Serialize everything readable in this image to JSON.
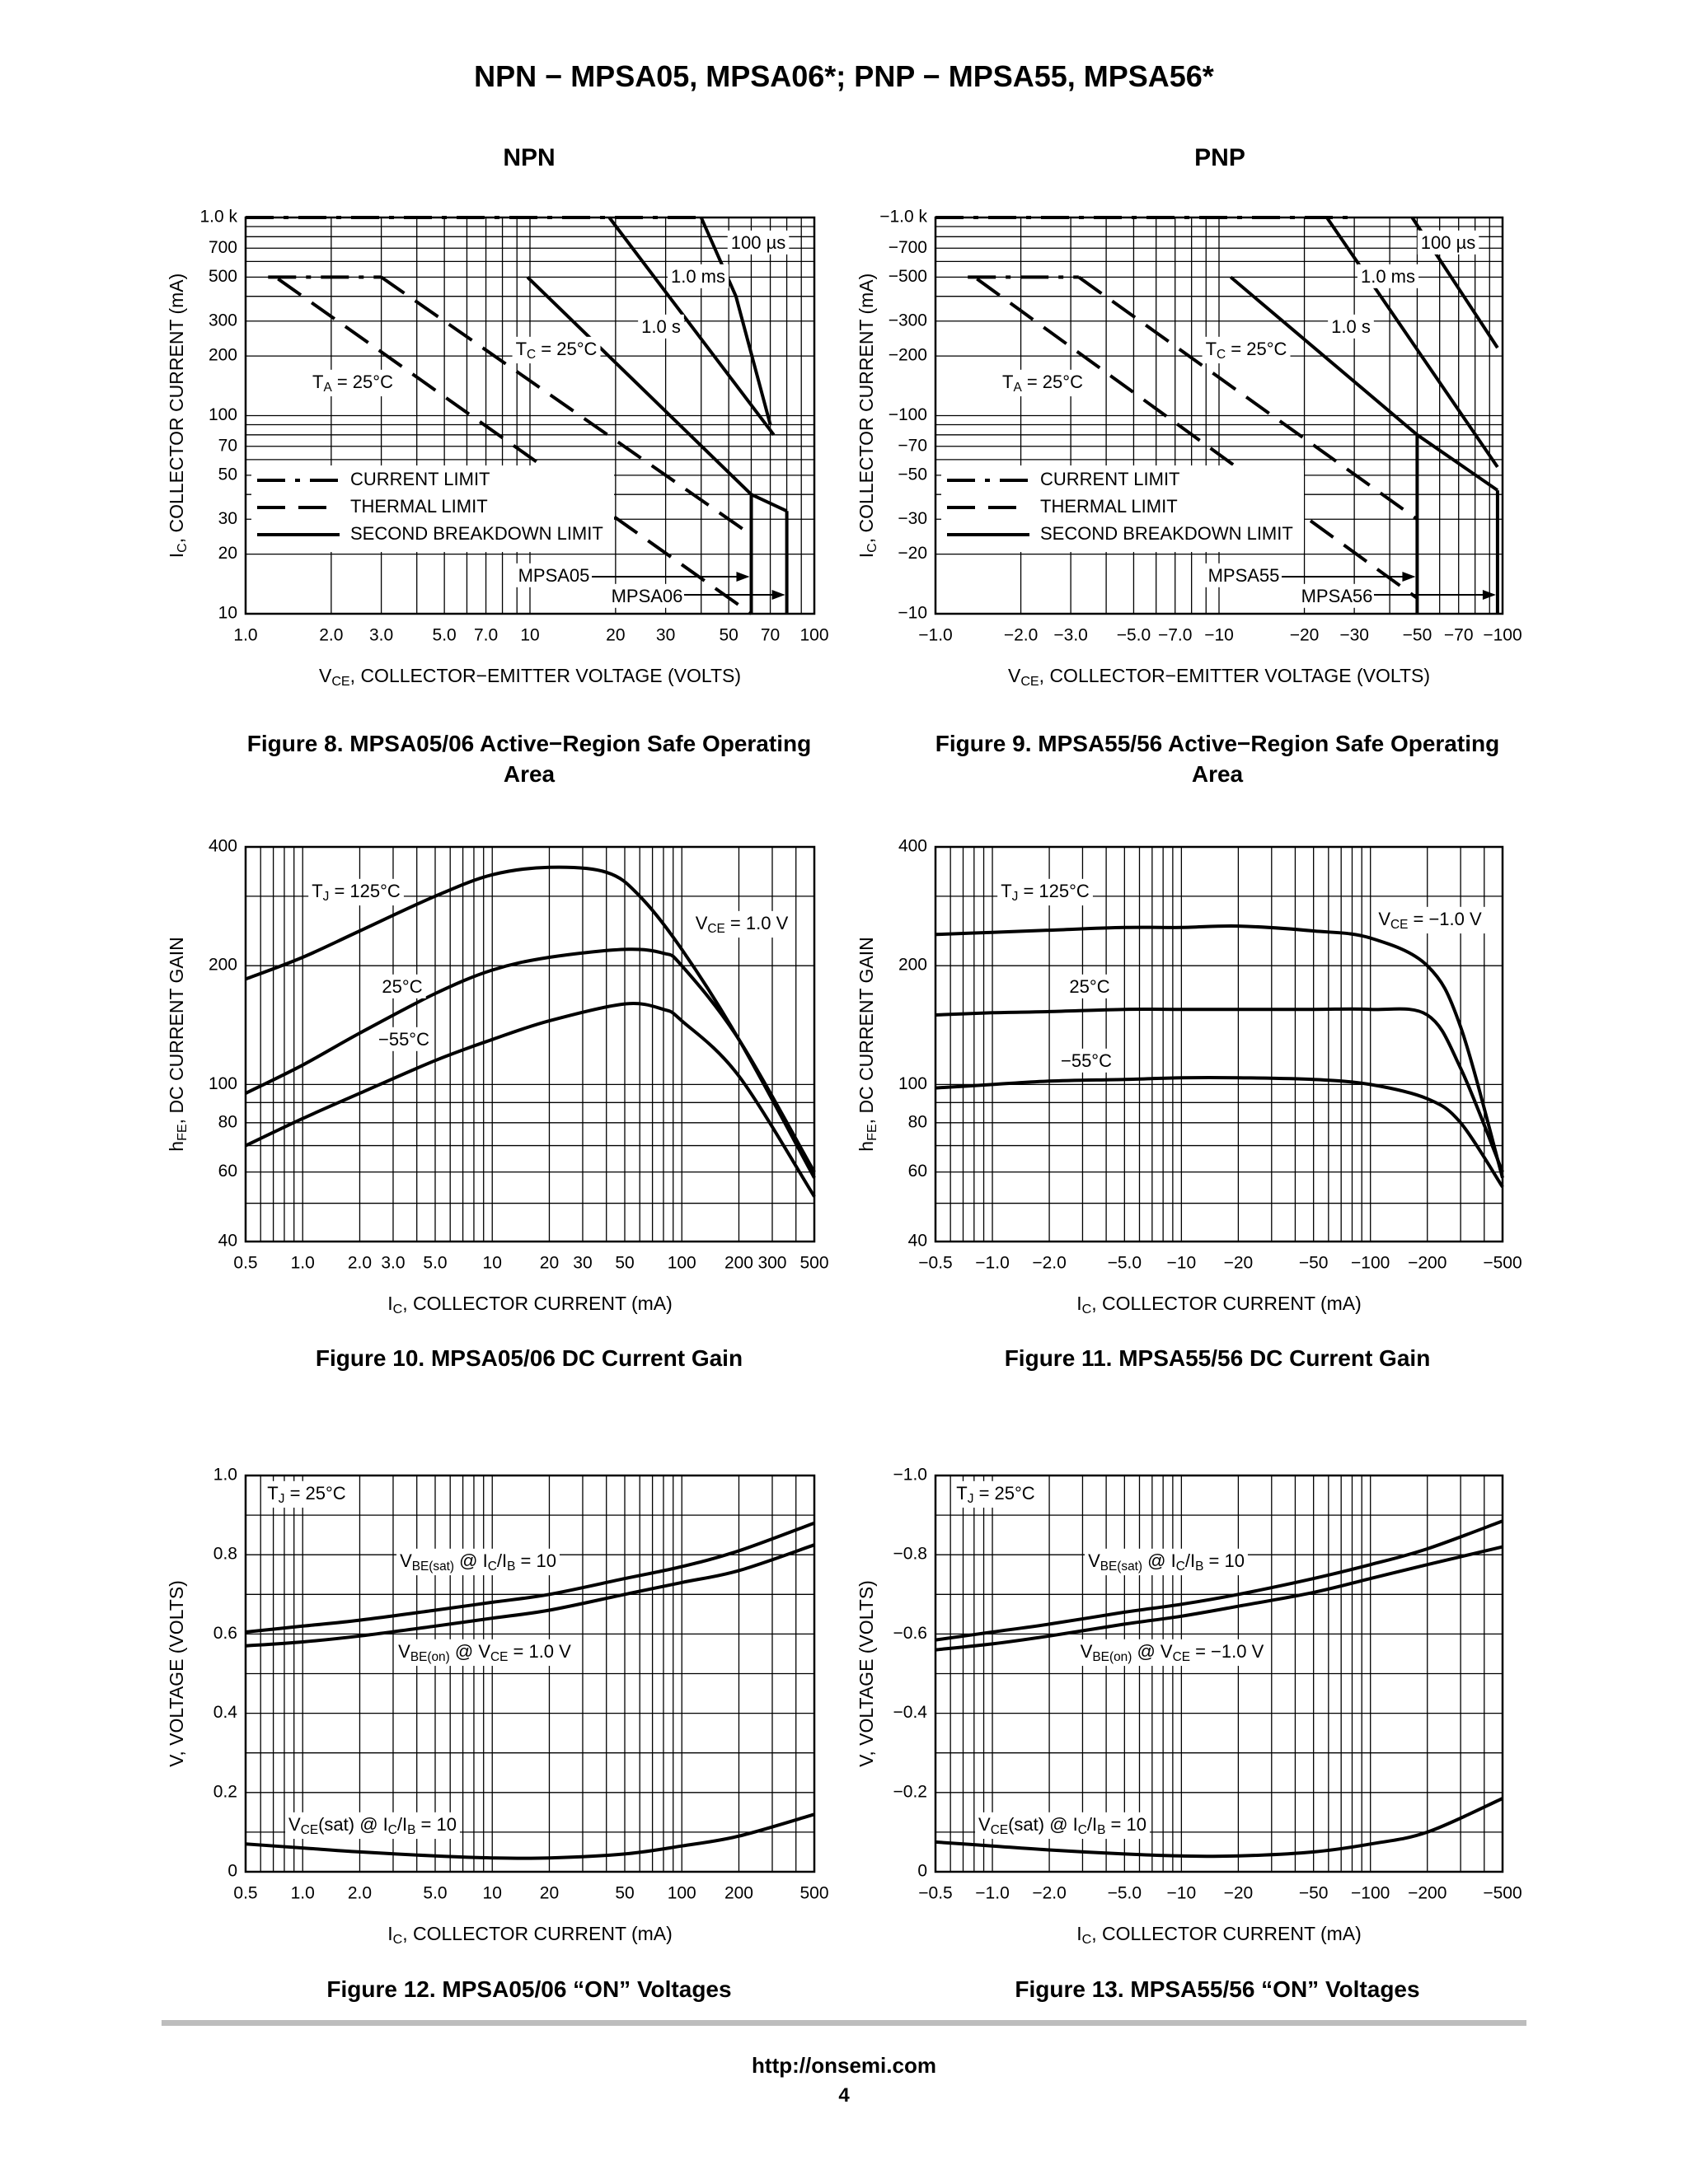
{
  "page": {
    "title": "NPN − MPSA05, MPSA06*; PNP − MPSA55, MPSA56*",
    "npn_heading": "NPN",
    "pnp_heading": "PNP",
    "footer_url": "http://onsemi.com",
    "page_number": "4"
  },
  "captions": {
    "fig8": "Figure 8. MPSA05/06 Active−Region Safe Operating Area",
    "fig9": "Figure 9. MPSA55/56 Active−Region Safe Operating Area",
    "fig10": "Figure 10. MPSA05/06 DC Current Gain",
    "fig11": "Figure 11. MPSA55/56 DC Current Gain",
    "fig12": "Figure 12. MPSA05/06 “ON” Voltages",
    "fig13": "Figure 13. MPSA55/56 “ON” Voltages"
  },
  "chart_data": [
    {
      "id": "fig8",
      "type": "line",
      "xscale": "log",
      "yscale": "log",
      "title": "Figure 8. MPSA05/06 Active−Region Safe Operating Area",
      "xlabel": "V_CE, COLLECTOR−EMITTER VOLTAGE (VOLTS)",
      "ylabel": "I_C, COLLECTOR CURRENT (mA)",
      "xlim": [
        1,
        100
      ],
      "ylim": [
        10,
        1000
      ],
      "xticks": [
        1,
        2,
        3,
        5,
        7,
        10,
        20,
        30,
        50,
        70,
        100
      ],
      "xticklabels": [
        "1.0",
        "2.0",
        "3.0",
        "5.0",
        "7.0",
        "10",
        "20",
        "30",
        "50",
        "70",
        "100"
      ],
      "yticks": [
        10,
        20,
        30,
        50,
        70,
        100,
        200,
        300,
        500,
        700,
        1000
      ],
      "yticklabels": [
        "10",
        "20",
        "30",
        "50",
        "70",
        "100",
        "200",
        "300",
        "500",
        "700",
        "1.0 k"
      ],
      "series": [
        {
          "name": "CURRENT LIMIT (1.0 k)",
          "style": "dashdot",
          "x": [
            1.0,
            40
          ],
          "y": [
            1000,
            1000
          ]
        },
        {
          "name": "CURRENT LIMIT (500)",
          "style": "dashdot",
          "x": [
            1.2,
            3.0
          ],
          "y": [
            500,
            500
          ]
        },
        {
          "name": "THERMAL LIMIT TA = 25°C",
          "style": "dashed",
          "x": [
            1.3,
            60
          ],
          "y": [
            490,
            10
          ]
        },
        {
          "name": "THERMAL LIMIT TC = 25°C",
          "style": "dashed",
          "x": [
            3.0,
            60
          ],
          "y": [
            500,
            25
          ]
        },
        {
          "name": "1.0 s",
          "style": "solid",
          "x": [
            9.8,
            60,
            80
          ],
          "y": [
            500,
            40,
            33
          ]
        },
        {
          "name": "1.0 ms",
          "style": "solid",
          "x": [
            19,
            72
          ],
          "y": [
            1000,
            80
          ]
        },
        {
          "name": "100 µs",
          "style": "solid",
          "x": [
            40,
            53,
            70
          ],
          "y": [
            1000,
            400,
            90
          ]
        },
        {
          "name": "SECOND BREAKDOWN MPSA05",
          "style": "solid",
          "x": [
            60,
            60
          ],
          "y": [
            40,
            10
          ]
        },
        {
          "name": "SECOND BREAKDOWN MPSA06",
          "style": "solid",
          "x": [
            80,
            80
          ],
          "y": [
            33,
            10
          ]
        }
      ],
      "labels": {
        "curve_100us": "100 µs",
        "curve_1ms": "1.0 ms",
        "curve_1s": "1.0 s",
        "tc": "TC = 25°C",
        "ta": "TA = 25°C",
        "dev1": "MPSA05",
        "dev2": "MPSA06",
        "legend": [
          "CURRENT LIMIT",
          "THERMAL LIMIT",
          "SECOND BREAKDOWN LIMIT"
        ]
      }
    },
    {
      "id": "fig9",
      "type": "line",
      "xscale": "log",
      "yscale": "log",
      "title": "Figure 9. MPSA55/56 Active−Region Safe Operating Area",
      "xlabel": "V_CE, COLLECTOR−EMITTER VOLTAGE (VOLTS)",
      "ylabel": "I_C, COLLECTOR CURRENT (mA)",
      "xlim": [
        -1,
        -100
      ],
      "ylim": [
        -10,
        -1000
      ],
      "xticks": [
        1,
        2,
        3,
        5,
        7,
        10,
        20,
        30,
        50,
        70,
        100
      ],
      "xticklabels": [
        "−1.0",
        "−2.0",
        "−3.0",
        "−5.0",
        "−7.0",
        "−10",
        "−20",
        "−30",
        "−50",
        "−70",
        "−100"
      ],
      "yticks": [
        10,
        20,
        30,
        50,
        70,
        100,
        200,
        300,
        500,
        700,
        1000
      ],
      "yticklabels": [
        "−10",
        "−20",
        "−30",
        "−50",
        "−70",
        "−100",
        "−200",
        "−300",
        "−500",
        "−700",
        "−1.0 k"
      ],
      "series": [
        {
          "name": "CURRENT LIMIT (−1.0 k)",
          "style": "dashdot",
          "x": [
            1.0,
            30
          ],
          "y": [
            1000,
            1000
          ]
        },
        {
          "name": "CURRENT LIMIT (−500)",
          "style": "dashdot",
          "x": [
            1.3,
            3.2
          ],
          "y": [
            500,
            500
          ]
        },
        {
          "name": "THERMAL LIMIT TA = 25°C",
          "style": "dashed",
          "x": [
            1.4,
            50
          ],
          "y": [
            490,
            12
          ]
        },
        {
          "name": "THERMAL LIMIT TC = 25°C",
          "style": "dashed",
          "x": [
            3.2,
            50
          ],
          "y": [
            500,
            30
          ]
        },
        {
          "name": "1.0 s",
          "style": "solid",
          "x": [
            11,
            50,
            96
          ],
          "y": [
            500,
            80,
            42
          ]
        },
        {
          "name": "1.0 ms",
          "style": "solid",
          "x": [
            24,
            96
          ],
          "y": [
            1000,
            55
          ]
        },
        {
          "name": "100 µs",
          "style": "solid",
          "x": [
            48,
            96
          ],
          "y": [
            1000,
            220
          ]
        },
        {
          "name": "SECOND BREAKDOWN MPSA55",
          "style": "solid",
          "x": [
            50,
            50
          ],
          "y": [
            80,
            10
          ]
        },
        {
          "name": "SECOND BREAKDOWN MPSA56",
          "style": "solid",
          "x": [
            96,
            96
          ],
          "y": [
            42,
            10
          ]
        }
      ],
      "labels": {
        "curve_100us": "100 µs",
        "curve_1ms": "1.0 ms",
        "curve_1s": "1.0 s",
        "tc": "TC = 25°C",
        "ta": "TA = 25°C",
        "dev1": "MPSA55",
        "dev2": "MPSA56",
        "legend": [
          "CURRENT LIMIT",
          "THERMAL LIMIT",
          "SECOND BREAKDOWN LIMIT"
        ]
      }
    },
    {
      "id": "fig10",
      "type": "line",
      "xscale": "log",
      "yscale": "log",
      "title": "Figure 10. MPSA05/06 DC Current Gain",
      "xlabel": "I_C, COLLECTOR CURRENT (mA)",
      "ylabel": "h_FE, DC CURRENT GAIN",
      "xlim": [
        0.5,
        500
      ],
      "ylim": [
        40,
        400
      ],
      "xticks": [
        0.5,
        1,
        2,
        3,
        5,
        10,
        20,
        30,
        50,
        100,
        200,
        300,
        500
      ],
      "xticklabels": [
        "0.5",
        "1.0",
        "2.0",
        "3.0",
        "5.0",
        "10",
        "20",
        "30",
        "50",
        "100",
        "200",
        "300",
        "500"
      ],
      "yticks": [
        40,
        60,
        80,
        100,
        200,
        400
      ],
      "yticklabels": [
        "40",
        "60",
        "80",
        "100",
        "200",
        "400"
      ],
      "series": [
        {
          "name": "TJ = 125°C",
          "x": [
            0.5,
            1,
            2,
            5,
            10,
            20,
            40,
            60,
            100,
            200,
            500
          ],
          "y": [
            185,
            210,
            245,
            300,
            340,
            355,
            345,
            300,
            220,
            130,
            58
          ]
        },
        {
          "name": "25°C",
          "x": [
            0.5,
            1,
            2,
            5,
            10,
            20,
            50,
            80,
            100,
            200,
            500
          ],
          "y": [
            95,
            112,
            135,
            170,
            195,
            210,
            220,
            215,
            200,
            130,
            60
          ]
        },
        {
          "name": "−55°C",
          "x": [
            0.5,
            1,
            2,
            5,
            10,
            20,
            50,
            80,
            100,
            200,
            500
          ],
          "y": [
            70,
            82,
            95,
            115,
            130,
            145,
            160,
            155,
            145,
            105,
            52
          ]
        }
      ],
      "labels": {
        "tj": "TJ = 125°C",
        "t25": "25°C",
        "t55": "−55°C",
        "vce": "VCE = 1.0 V"
      }
    },
    {
      "id": "fig11",
      "type": "line",
      "xscale": "log",
      "yscale": "log",
      "title": "Figure 11. MPSA55/56 DC Current Gain",
      "xlabel": "I_C, COLLECTOR CURRENT (mA)",
      "ylabel": "h_FE, DC CURRENT GAIN",
      "xlim": [
        -0.5,
        -500
      ],
      "ylim": [
        40,
        400
      ],
      "xticks": [
        0.5,
        1,
        2,
        5,
        10,
        20,
        50,
        100,
        200,
        500
      ],
      "xticklabels": [
        "−0.5",
        "−1.0",
        "−2.0",
        "−5.0",
        "−10",
        "−20",
        "−50",
        "−100",
        "−200",
        "−500"
      ],
      "yticks": [
        40,
        60,
        80,
        100,
        200,
        400
      ],
      "yticklabels": [
        "40",
        "60",
        "80",
        "100",
        "200",
        "400"
      ],
      "series": [
        {
          "name": "TJ = 125°C",
          "x": [
            0.5,
            1,
            2,
            5,
            10,
            20,
            50,
            100,
            200,
            300,
            500
          ],
          "y": [
            240,
            243,
            246,
            250,
            250,
            252,
            245,
            235,
            200,
            140,
            58
          ]
        },
        {
          "name": "25°C",
          "x": [
            0.5,
            1,
            2,
            5,
            10,
            20,
            50,
            100,
            200,
            300,
            500
          ],
          "y": [
            150,
            152,
            153,
            155,
            155,
            155,
            155,
            155,
            150,
            110,
            60
          ]
        },
        {
          "name": "−55°C",
          "x": [
            0.5,
            1,
            2,
            5,
            10,
            20,
            50,
            100,
            200,
            300,
            500
          ],
          "y": [
            98,
            100,
            102,
            103,
            104,
            104,
            103,
            100,
            92,
            80,
            55
          ]
        }
      ],
      "labels": {
        "tj": "TJ = 125°C",
        "t25": "25°C",
        "t55": "−55°C",
        "vce": "VCE = −1.0 V"
      }
    },
    {
      "id": "fig12",
      "type": "line",
      "xscale": "log",
      "yscale": "linear",
      "title": "Figure 12. MPSA05/06 “ON” Voltages",
      "xlabel": "I_C, COLLECTOR CURRENT (mA)",
      "ylabel": "V, VOLTAGE (VOLTS)",
      "xlim": [
        0.5,
        500
      ],
      "ylim": [
        0,
        1.0
      ],
      "xticks": [
        0.5,
        1,
        2,
        5,
        10,
        20,
        50,
        100,
        200,
        500
      ],
      "xticklabels": [
        "0.5",
        "1.0",
        "2.0",
        "5.0",
        "10",
        "20",
        "50",
        "100",
        "200",
        "500"
      ],
      "yticks": [
        0,
        0.2,
        0.4,
        0.6,
        0.8,
        1.0
      ],
      "yticklabels": [
        "0",
        "0.2",
        "0.4",
        "0.6",
        "0.8",
        "1.0"
      ],
      "series": [
        {
          "name": "VBE(sat) @ IC/IB = 10",
          "x": [
            0.5,
            1,
            2,
            5,
            10,
            20,
            50,
            100,
            200,
            500
          ],
          "y": [
            0.605,
            0.62,
            0.635,
            0.66,
            0.68,
            0.7,
            0.74,
            0.77,
            0.81,
            0.88
          ]
        },
        {
          "name": "VBE(on) @ VCE = 1.0 V",
          "x": [
            0.5,
            1,
            2,
            5,
            10,
            20,
            50,
            100,
            200,
            500
          ],
          "y": [
            0.57,
            0.58,
            0.595,
            0.62,
            0.64,
            0.66,
            0.7,
            0.73,
            0.76,
            0.825
          ]
        },
        {
          "name": "VCE(sat) @ IC/IB = 10",
          "x": [
            0.5,
            1,
            2,
            5,
            10,
            20,
            50,
            100,
            200,
            500
          ],
          "y": [
            0.07,
            0.06,
            0.05,
            0.04,
            0.035,
            0.035,
            0.045,
            0.065,
            0.09,
            0.145
          ]
        }
      ],
      "labels": {
        "tj": "TJ = 25°C",
        "vbesat": "VBE(sat) @ IC/IB = 10",
        "vbeon": "VBE(on) @ VCE = 1.0 V",
        "vcesat": "VCE(sat) @ IC/IB = 10"
      }
    },
    {
      "id": "fig13",
      "type": "line",
      "xscale": "log",
      "yscale": "linear",
      "title": "Figure 13. MPSA55/56 “ON” Voltages",
      "xlabel": "I_C, COLLECTOR CURRENT (mA)",
      "ylabel": "V, VOLTAGE (VOLTS)",
      "xlim": [
        -0.5,
        -500
      ],
      "ylim": [
        0,
        -1.0
      ],
      "xticks": [
        0.5,
        1,
        2,
        5,
        10,
        20,
        50,
        100,
        200,
        500
      ],
      "xticklabels": [
        "−0.5",
        "−1.0",
        "−2.0",
        "−5.0",
        "−10",
        "−20",
        "−50",
        "−100",
        "−200",
        "−500"
      ],
      "yticks": [
        0,
        0.2,
        0.4,
        0.6,
        0.8,
        1.0
      ],
      "yticklabels": [
        "0",
        "−0.2",
        "−0.4",
        "−0.6",
        "−0.8",
        "−1.0"
      ],
      "series": [
        {
          "name": "VBE(sat) @ IC/IB = 10",
          "x": [
            0.5,
            1,
            2,
            5,
            10,
            20,
            50,
            100,
            200,
            500
          ],
          "y": [
            0.585,
            0.605,
            0.625,
            0.655,
            0.675,
            0.7,
            0.74,
            0.775,
            0.815,
            0.885
          ]
        },
        {
          "name": "VBE(on) @ VCE = −1.0 V",
          "x": [
            0.5,
            1,
            2,
            5,
            10,
            20,
            50,
            100,
            200,
            500
          ],
          "y": [
            0.56,
            0.575,
            0.595,
            0.625,
            0.645,
            0.67,
            0.705,
            0.74,
            0.775,
            0.82
          ]
        },
        {
          "name": "VCE(sat) @ IC/IB = 10",
          "x": [
            0.5,
            1,
            2,
            5,
            10,
            20,
            50,
            100,
            200,
            500
          ],
          "y": [
            0.075,
            0.065,
            0.055,
            0.045,
            0.04,
            0.04,
            0.05,
            0.07,
            0.1,
            0.185
          ]
        }
      ],
      "labels": {
        "tj": "TJ = 25°C",
        "vbesat": "VBE(sat) @ IC/IB = 10",
        "vbeon": "VBE(on) @ VCE = −1.0 V",
        "vcesat": "VCE(sat) @ IC/IB = 10"
      }
    }
  ]
}
